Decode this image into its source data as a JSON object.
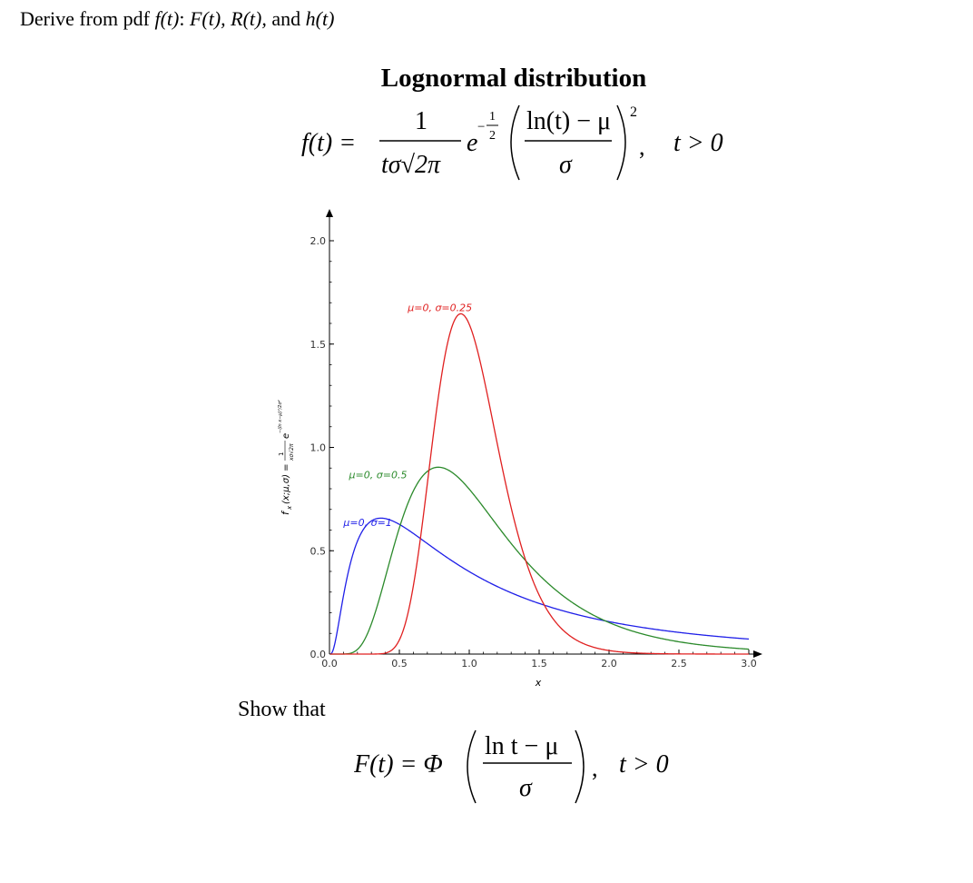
{
  "header": {
    "prefix": "Derive from pdf ",
    "ft": "f(t)",
    "colon": ": ",
    "Ft": "F(t),",
    "Rt": " R(t),",
    "and": " and ",
    "ht": "h(t)"
  },
  "title": "Lognormal distribution",
  "pdf_formula": {
    "lhs": "f(t) =",
    "numerator": "1",
    "denominator": "tσ√2π",
    "e": "e",
    "exp_num": "1",
    "exp_den": "2",
    "exp_minus": "−",
    "inner_num": "ln(t) − μ",
    "inner_den": "σ",
    "power": "2",
    "comma": ",",
    "domain": "t > 0"
  },
  "show_that": "Show that",
  "cdf_formula": {
    "lhs": "F(t) = Φ",
    "inner_num": "ln t − μ",
    "inner_den": "σ",
    "comma": ",",
    "domain": "t > 0"
  },
  "chart_data": {
    "type": "line",
    "xlim": [
      0,
      3.0
    ],
    "ylim": [
      0,
      2.0
    ],
    "xticks": [
      "0.0",
      "0.5",
      "1.0",
      "1.5",
      "2.0",
      "2.5",
      "3.0"
    ],
    "yticks": [
      "0.0",
      "0.5",
      "1.0",
      "1.5",
      "2.0"
    ],
    "xlabel": "x",
    "ylabel": "f_x (x;μ,σ) = 1/(xσ√2π) e^(−(ln x−μ)²/(2σ²))",
    "ylabel_left": "f",
    "ylabel_sub": "x",
    "ylabel_args": " (x;μ,σ) =",
    "ylabel_coef": "1",
    "ylabel_coef_den": "xσ√2π",
    "ylabel_e": "e",
    "ylabel_exp": "−(ln x−μ)²/2σ²",
    "grid": false,
    "series": [
      {
        "name": "μ=0, σ=1",
        "mu": 0,
        "sigma": 1,
        "color": "#1f1fe8",
        "x": [
          0.05,
          0.1,
          0.2,
          0.3,
          0.4,
          0.5,
          0.75,
          1.0,
          1.25,
          1.5,
          2.0,
          2.5,
          3.0
        ],
        "y": [
          0.02,
          0.28,
          0.55,
          0.64,
          0.66,
          0.63,
          0.51,
          0.4,
          0.31,
          0.24,
          0.16,
          0.11,
          0.07
        ]
      },
      {
        "name": "μ=0, σ=0.5",
        "mu": 0,
        "sigma": 0.5,
        "color": "#2b8a2b",
        "x": [
          0.2,
          0.3,
          0.4,
          0.5,
          0.6,
          0.7,
          0.8,
          1.0,
          1.25,
          1.5,
          2.0,
          2.5,
          3.0
        ],
        "y": [
          0.01,
          0.11,
          0.34,
          0.61,
          0.81,
          0.89,
          0.9,
          0.8,
          0.56,
          0.36,
          0.14,
          0.05,
          0.02
        ]
      },
      {
        "name": "μ=0, σ=0.25",
        "mu": 0,
        "sigma": 0.25,
        "color": "#e02020",
        "x": [
          0.4,
          0.5,
          0.6,
          0.7,
          0.8,
          0.9,
          0.94,
          1.0,
          1.1,
          1.25,
          1.5,
          1.75,
          2.0,
          2.5
        ],
        "y": [
          0.01,
          0.07,
          0.38,
          0.87,
          1.36,
          1.62,
          1.65,
          1.6,
          1.3,
          0.77,
          0.22,
          0.05,
          0.01,
          0.0
        ]
      }
    ],
    "annotations": [
      {
        "text": "μ=0, σ=0.25",
        "color": "#e02020",
        "x": 0.56,
        "y": 1.66
      },
      {
        "text": "μ=0, σ=0.5",
        "color": "#2b8a2b",
        "x": 0.14,
        "y": 0.85
      },
      {
        "text": "μ=0, σ=1",
        "color": "#1f1fe8",
        "x": 0.1,
        "y": 0.62
      }
    ]
  }
}
